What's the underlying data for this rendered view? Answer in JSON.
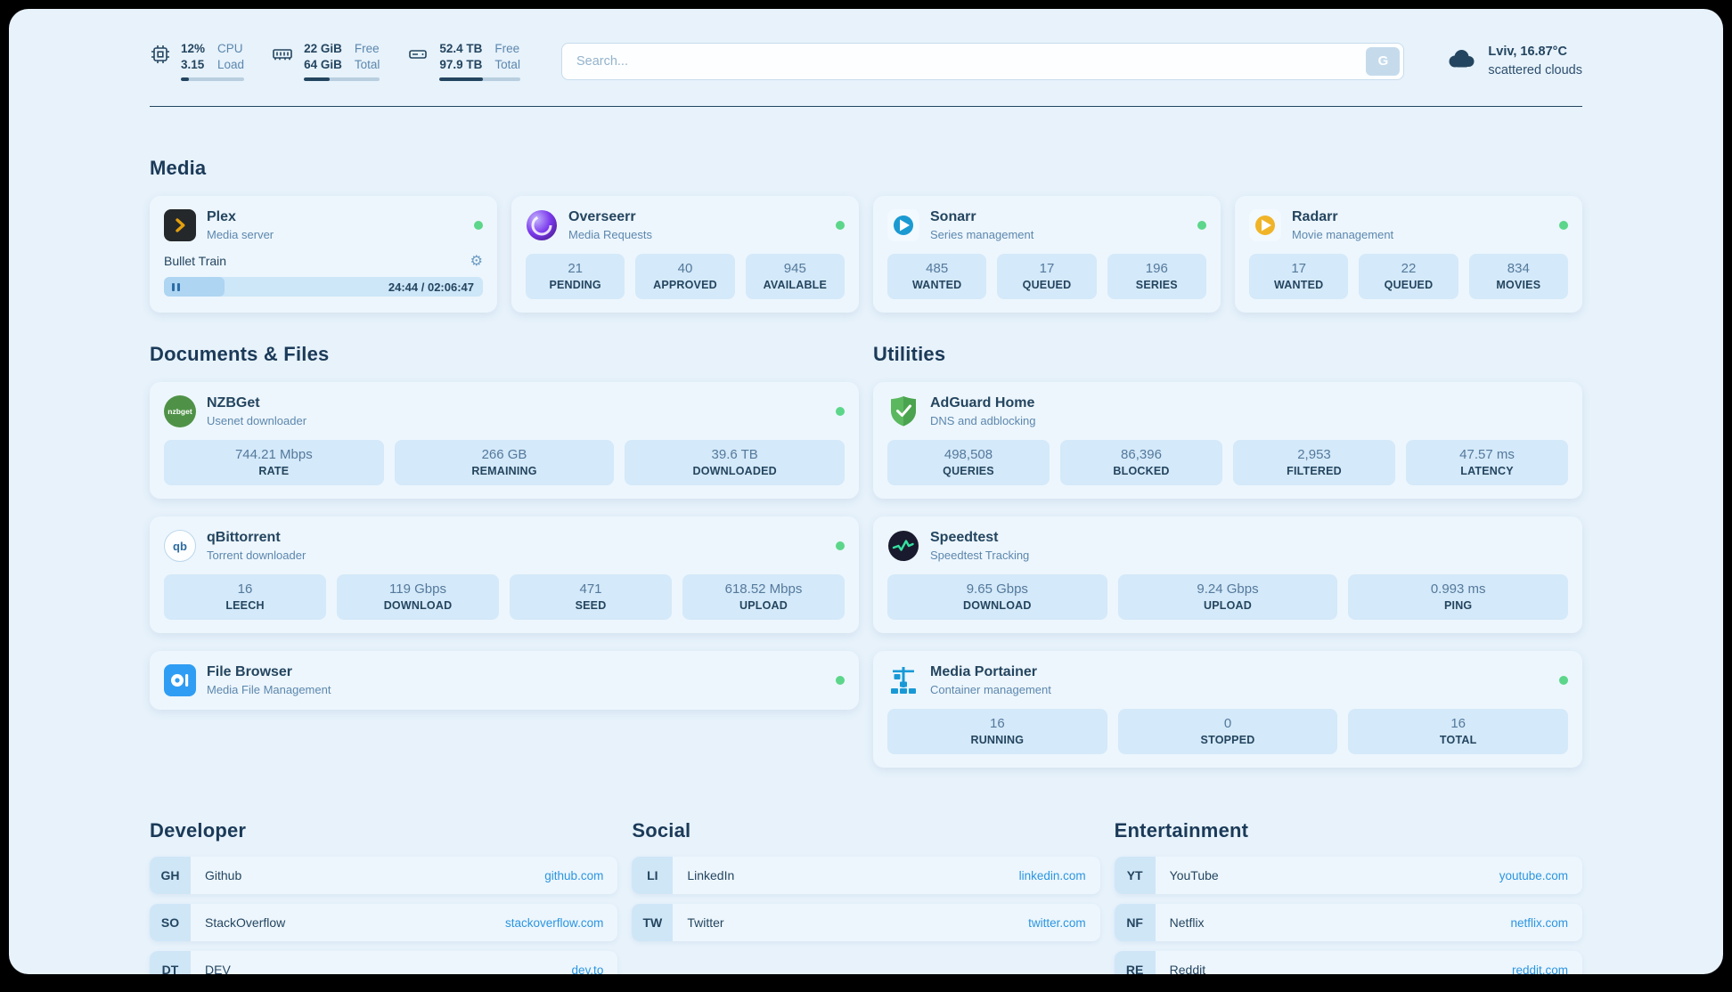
{
  "topbar": {
    "cpu": {
      "value": "12%",
      "load": "3.15",
      "label_a": "CPU",
      "label_b": "Load",
      "progress": 12
    },
    "ram": {
      "free": "22 GiB",
      "total": "64 GiB",
      "label_a": "Free",
      "label_b": "Total",
      "progress": 34
    },
    "disk": {
      "free": "52.4 TB",
      "total": "97.9 TB",
      "label_a": "Free",
      "label_b": "Total",
      "progress": 54
    },
    "search": {
      "placeholder": "Search...",
      "button_label": "G"
    },
    "weather": {
      "location": "Lviv, 16.87°C",
      "condition": "scattered clouds"
    }
  },
  "sections": {
    "media": "Media",
    "documents": "Documents & Files",
    "utilities": "Utilities",
    "developer": "Developer",
    "social": "Social",
    "entertainment": "Entertainment"
  },
  "apps": {
    "plex": {
      "name": "Plex",
      "desc": "Media server",
      "now_playing": "Bullet Train",
      "time": "24:44 / 02:06:47",
      "progress": 19
    },
    "overseerr": {
      "name": "Overseerr",
      "desc": "Media Requests",
      "stats": [
        {
          "value": "21",
          "label": "PENDING"
        },
        {
          "value": "40",
          "label": "APPROVED"
        },
        {
          "value": "945",
          "label": "AVAILABLE"
        }
      ]
    },
    "sonarr": {
      "name": "Sonarr",
      "desc": "Series management",
      "stats": [
        {
          "value": "485",
          "label": "WANTED"
        },
        {
          "value": "17",
          "label": "QUEUED"
        },
        {
          "value": "196",
          "label": "SERIES"
        }
      ]
    },
    "radarr": {
      "name": "Radarr",
      "desc": "Movie management",
      "stats": [
        {
          "value": "17",
          "label": "WANTED"
        },
        {
          "value": "22",
          "label": "QUEUED"
        },
        {
          "value": "834",
          "label": "MOVIES"
        }
      ]
    },
    "nzbget": {
      "name": "NZBGet",
      "desc": "Usenet downloader",
      "icon_text": "nzbget",
      "stats": [
        {
          "value": "744.21 Mbps",
          "label": "RATE"
        },
        {
          "value": "266 GB",
          "label": "REMAINING"
        },
        {
          "value": "39.6 TB",
          "label": "DOWNLOADED"
        }
      ]
    },
    "qbittorrent": {
      "name": "qBittorrent",
      "desc": "Torrent downloader",
      "icon_text": "qb",
      "stats": [
        {
          "value": "16",
          "label": "LEECH"
        },
        {
          "value": "119 Gbps",
          "label": "DOWNLOAD"
        },
        {
          "value": "471",
          "label": "SEED"
        },
        {
          "value": "618.52 Mbps",
          "label": "UPLOAD"
        }
      ]
    },
    "filebrowser": {
      "name": "File Browser",
      "desc": "Media File Management"
    },
    "adguard": {
      "name": "AdGuard Home",
      "desc": "DNS and adblocking",
      "stats": [
        {
          "value": "498,508",
          "label": "QUERIES"
        },
        {
          "value": "86,396",
          "label": "BLOCKED"
        },
        {
          "value": "2,953",
          "label": "FILTERED"
        },
        {
          "value": "47.57 ms",
          "label": "LATENCY"
        }
      ]
    },
    "speedtest": {
      "name": "Speedtest",
      "desc": "Speedtest Tracking",
      "stats": [
        {
          "value": "9.65 Gbps",
          "label": "DOWNLOAD"
        },
        {
          "value": "9.24 Gbps",
          "label": "UPLOAD"
        },
        {
          "value": "0.993 ms",
          "label": "PING"
        }
      ]
    },
    "portainer": {
      "name": "Media Portainer",
      "desc": "Container management",
      "stats": [
        {
          "value": "16",
          "label": "RUNNING"
        },
        {
          "value": "0",
          "label": "STOPPED"
        },
        {
          "value": "16",
          "label": "TOTAL"
        }
      ]
    }
  },
  "bookmarks": {
    "developer": [
      {
        "abbr": "GH",
        "name": "Github",
        "url": "github.com"
      },
      {
        "abbr": "SO",
        "name": "StackOverflow",
        "url": "stackoverflow.com"
      },
      {
        "abbr": "DT",
        "name": "DEV",
        "url": "dev.to"
      }
    ],
    "social": [
      {
        "abbr": "LI",
        "name": "LinkedIn",
        "url": "linkedin.com"
      },
      {
        "abbr": "TW",
        "name": "Twitter",
        "url": "twitter.com"
      }
    ],
    "entertainment": [
      {
        "abbr": "YT",
        "name": "YouTube",
        "url": "youtube.com"
      },
      {
        "abbr": "NF",
        "name": "Netflix",
        "url": "netflix.com"
      },
      {
        "abbr": "RE",
        "name": "Reddit",
        "url": "reddit.com"
      }
    ]
  }
}
